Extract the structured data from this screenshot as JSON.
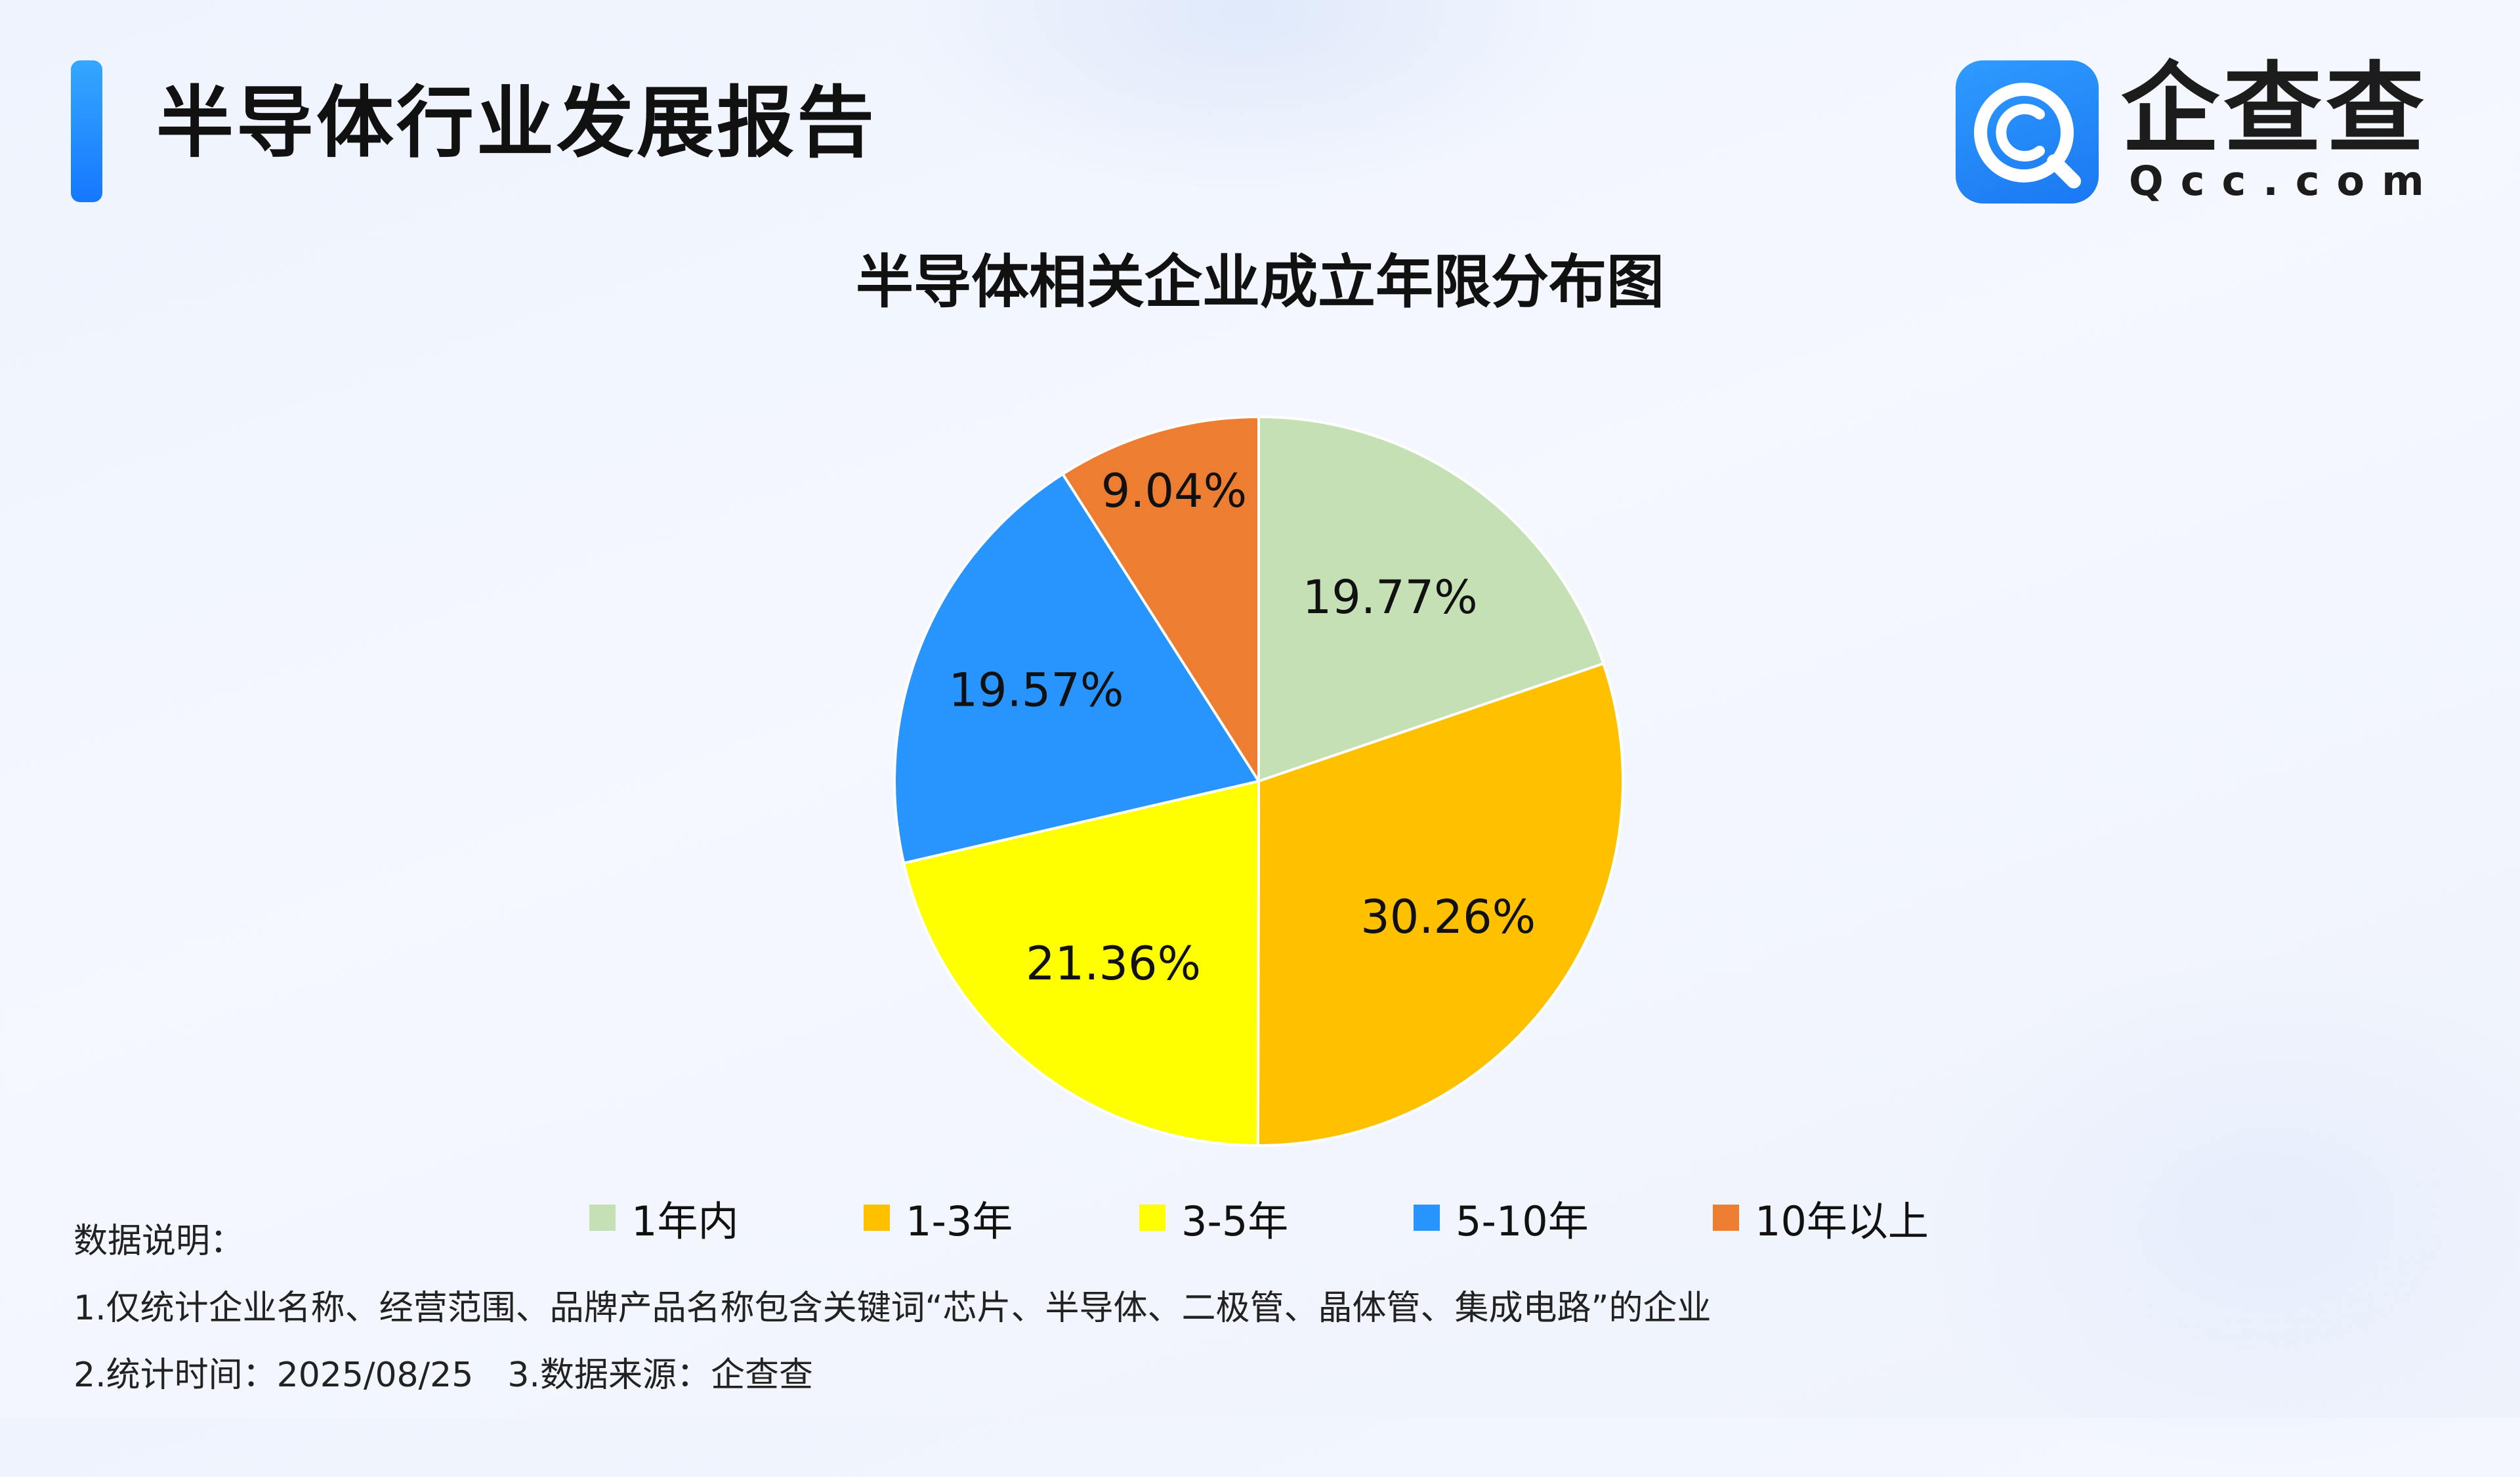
{
  "header": {
    "report_title": "半导体行业发展报告",
    "logo_name": "企查查",
    "logo_domain": "Qcc.com"
  },
  "chart_data": {
    "type": "pie",
    "title": "半导体相关企业成立年限分布图",
    "categories": [
      "1年内",
      "1-3年",
      "3-5年",
      "5-10年",
      "10年以上"
    ],
    "values": [
      19.77,
      30.26,
      21.36,
      19.57,
      9.04
    ],
    "data_labels": [
      "19.77%",
      "30.26%",
      "21.36%",
      "19.57%",
      "9.04%"
    ],
    "colors": [
      "#c5e0b4",
      "#ffc000",
      "#ffff00",
      "#2895ff",
      "#ed7d31"
    ],
    "unit": "%",
    "legend_position": "bottom",
    "start_angle": "12 o'clock",
    "direction": "clockwise"
  },
  "notes": {
    "heading": "数据说明：",
    "line1": "1.仅统计企业名称、经营范围、品牌产品名称包含关键词“芯片、半导体、二极管、晶体管、集成电路”的企业",
    "line2": "2.统计时间：2025/08/25　3.数据来源：企查查"
  }
}
